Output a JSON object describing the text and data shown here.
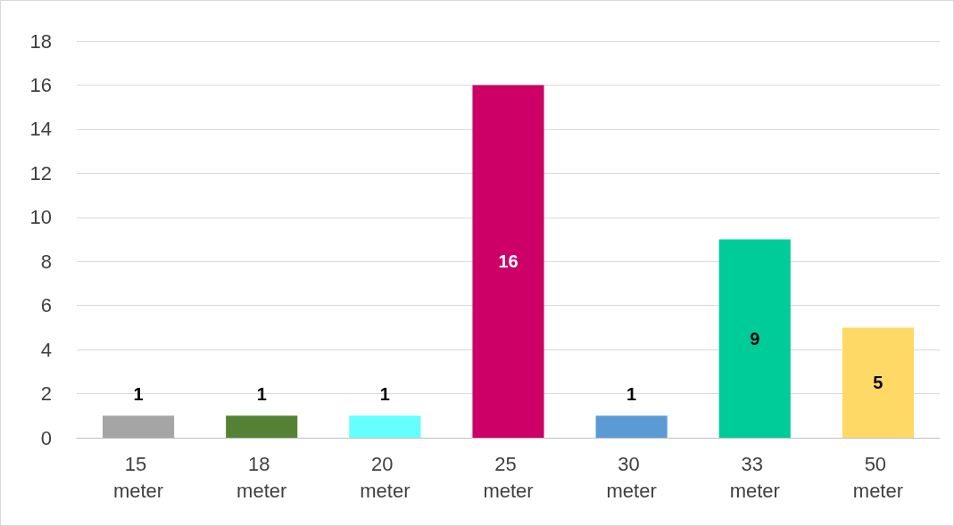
{
  "chart_data": {
    "type": "bar",
    "categories": [
      "15 meter",
      "18 meter",
      "20 meter",
      "25 meter",
      "30 meter",
      "33 meter",
      "50 meter"
    ],
    "values": [
      1,
      1,
      1,
      16,
      1,
      9,
      5
    ],
    "colors": [
      "#a5a5a5",
      "#548235",
      "#66ffff",
      "#cc0066",
      "#5b9bd5",
      "#00cc99",
      "#ffd966"
    ],
    "ylim": [
      0,
      18
    ],
    "yticks": [
      0,
      2,
      4,
      6,
      8,
      10,
      12,
      14,
      16,
      18
    ],
    "grid": "y",
    "data_labels": true
  }
}
